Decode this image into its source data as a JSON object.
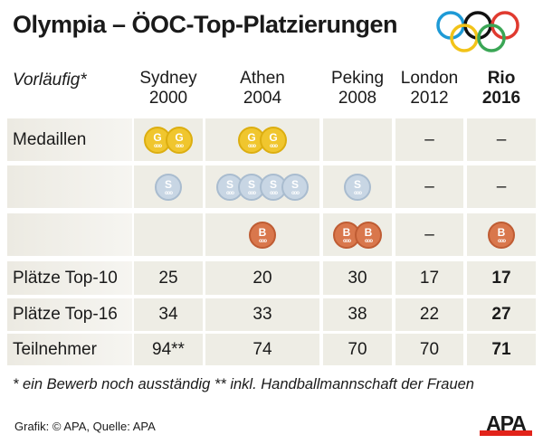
{
  "title": "Olympia – ÖOC-Top-Platzierungen",
  "chart_data": {
    "type": "table",
    "title": "Olympia – ÖOC-Top-Platzierungen",
    "corner_label": "Vorläufig*",
    "columns": [
      {
        "city": "Sydney",
        "year": "2000",
        "bold": false
      },
      {
        "city": "Athen",
        "year": "2004",
        "bold": false
      },
      {
        "city": "Peking",
        "year": "2008",
        "bold": false
      },
      {
        "city": "London",
        "year": "2012",
        "bold": false
      },
      {
        "city": "Rio",
        "year": "2016",
        "bold": true
      }
    ],
    "medal_label": "Medaillen",
    "medals": {
      "gold": {
        "letter": "G",
        "counts": [
          2,
          2,
          0,
          0,
          0
        ],
        "display": [
          "",
          "",
          "",
          "–",
          "–"
        ]
      },
      "silver": {
        "letter": "S",
        "counts": [
          1,
          4,
          1,
          0,
          0
        ],
        "display": [
          "",
          "",
          "",
          "–",
          "–"
        ]
      },
      "bronze": {
        "letter": "B",
        "counts": [
          0,
          1,
          2,
          0,
          1
        ],
        "display": [
          "",
          "",
          "",
          "–",
          ""
        ]
      }
    },
    "rows": [
      {
        "label": "Plätze Top-10",
        "values": [
          "25",
          "20",
          "30",
          "17",
          "17"
        ]
      },
      {
        "label": "Plätze Top-16",
        "values": [
          "34",
          "33",
          "38",
          "22",
          "27"
        ]
      },
      {
        "label": "Teilnehmer",
        "values": [
          "94**",
          "74",
          "70",
          "70",
          "71"
        ]
      }
    ]
  },
  "colors": {
    "gold": "#f0c62e",
    "silver": "#c8d6e4",
    "bronze": "#d9774c",
    "cell": "#eeede5",
    "apa_red": "#e2231a"
  },
  "footnote": "* ein Bewerb noch ausständig  ** inkl. Handballmannschaft der Frauen",
  "credit": "Grafik: © APA, Quelle: APA",
  "logo": "APA",
  "ring_colors": [
    "#1e9ad6",
    "#111111",
    "#e03a2f",
    "#f2c318",
    "#3aa655"
  ]
}
